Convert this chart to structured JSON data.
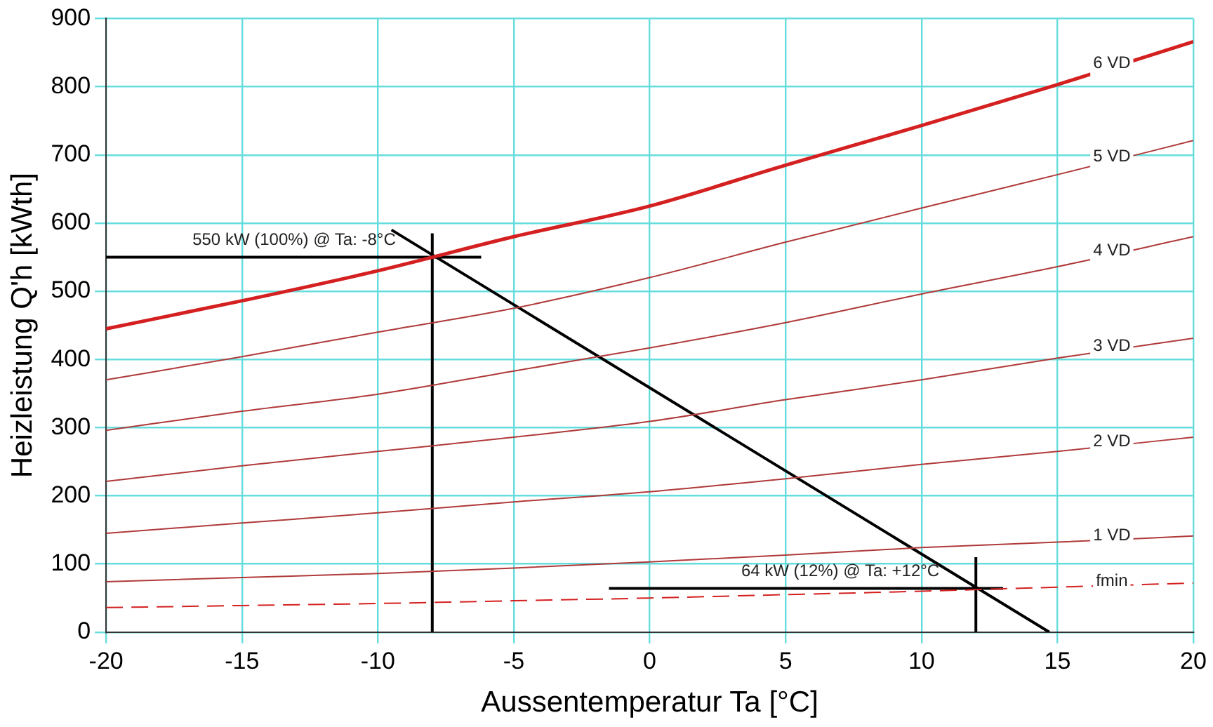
{
  "chart_data": {
    "type": "line",
    "xlabel": "Aussentemperatur Ta [°C]",
    "ylabel": "Heizleistung Q'h [kWth]",
    "x": [
      -20,
      -15,
      -10,
      -5,
      0,
      5,
      10,
      15,
      20
    ],
    "xlim": [
      -20,
      20
    ],
    "xticks": [
      -20,
      -15,
      -10,
      -5,
      0,
      5,
      10,
      15,
      20
    ],
    "ylim": [
      0,
      900
    ],
    "yticks": [
      0,
      100,
      200,
      300,
      400,
      500,
      600,
      700,
      800,
      900
    ],
    "grid": true,
    "legend": false,
    "marker": "none",
    "series": [
      {
        "name": "6 VD",
        "color": "#d42020",
        "values": [
          445,
          486,
          530,
          580,
          625,
          685,
          743,
          803,
          866
        ]
      },
      {
        "name": "5 VD",
        "color": "#b03a3a",
        "values": [
          370,
          404,
          440,
          475,
          520,
          572,
          622,
          671,
          721
        ]
      },
      {
        "name": "4 VD",
        "color": "#b03a3a",
        "values": [
          296,
          324,
          349,
          383,
          417,
          454,
          496,
          536,
          580
        ]
      },
      {
        "name": "3 VD",
        "color": "#b03a3a",
        "values": [
          221,
          244,
          265,
          286,
          309,
          341,
          370,
          402,
          431
        ]
      },
      {
        "name": "2 VD",
        "color": "#b03a3a",
        "values": [
          145,
          160,
          175,
          191,
          206,
          225,
          246,
          265,
          286
        ]
      },
      {
        "name": "1 VD",
        "color": "#b03a3a",
        "values": [
          74,
          80,
          86,
          94,
          103,
          113,
          124,
          132,
          141
        ]
      },
      {
        "name": "fmin",
        "color": "#d42020",
        "line_style": "dashed",
        "values": [
          36,
          39,
          42,
          46,
          50,
          55,
          60,
          66,
          72
        ]
      },
      {
        "color": "#000000",
        "x": [
          -9.5,
          14.7
        ],
        "values": [
          590,
          0
        ]
      },
      {
        "color": "#000000",
        "x": [
          -20,
          -6.2
        ],
        "values": [
          550,
          550
        ]
      },
      {
        "color": "#000000",
        "x": [
          -8,
          -8
        ],
        "values": [
          0,
          585
        ]
      },
      {
        "color": "#000000",
        "x": [
          -1.5,
          13
        ],
        "values": [
          64,
          64
        ]
      },
      {
        "color": "#000000",
        "x": [
          12,
          12
        ],
        "values": [
          0,
          110
        ]
      }
    ],
    "annotations": [
      {
        "text": "550 kW (100%) @ Ta: -8°C",
        "x": -8,
        "y": 550
      },
      {
        "text": "64 kW (12%) @ Ta: +12°C",
        "x": 12,
        "y": 64
      }
    ]
  }
}
